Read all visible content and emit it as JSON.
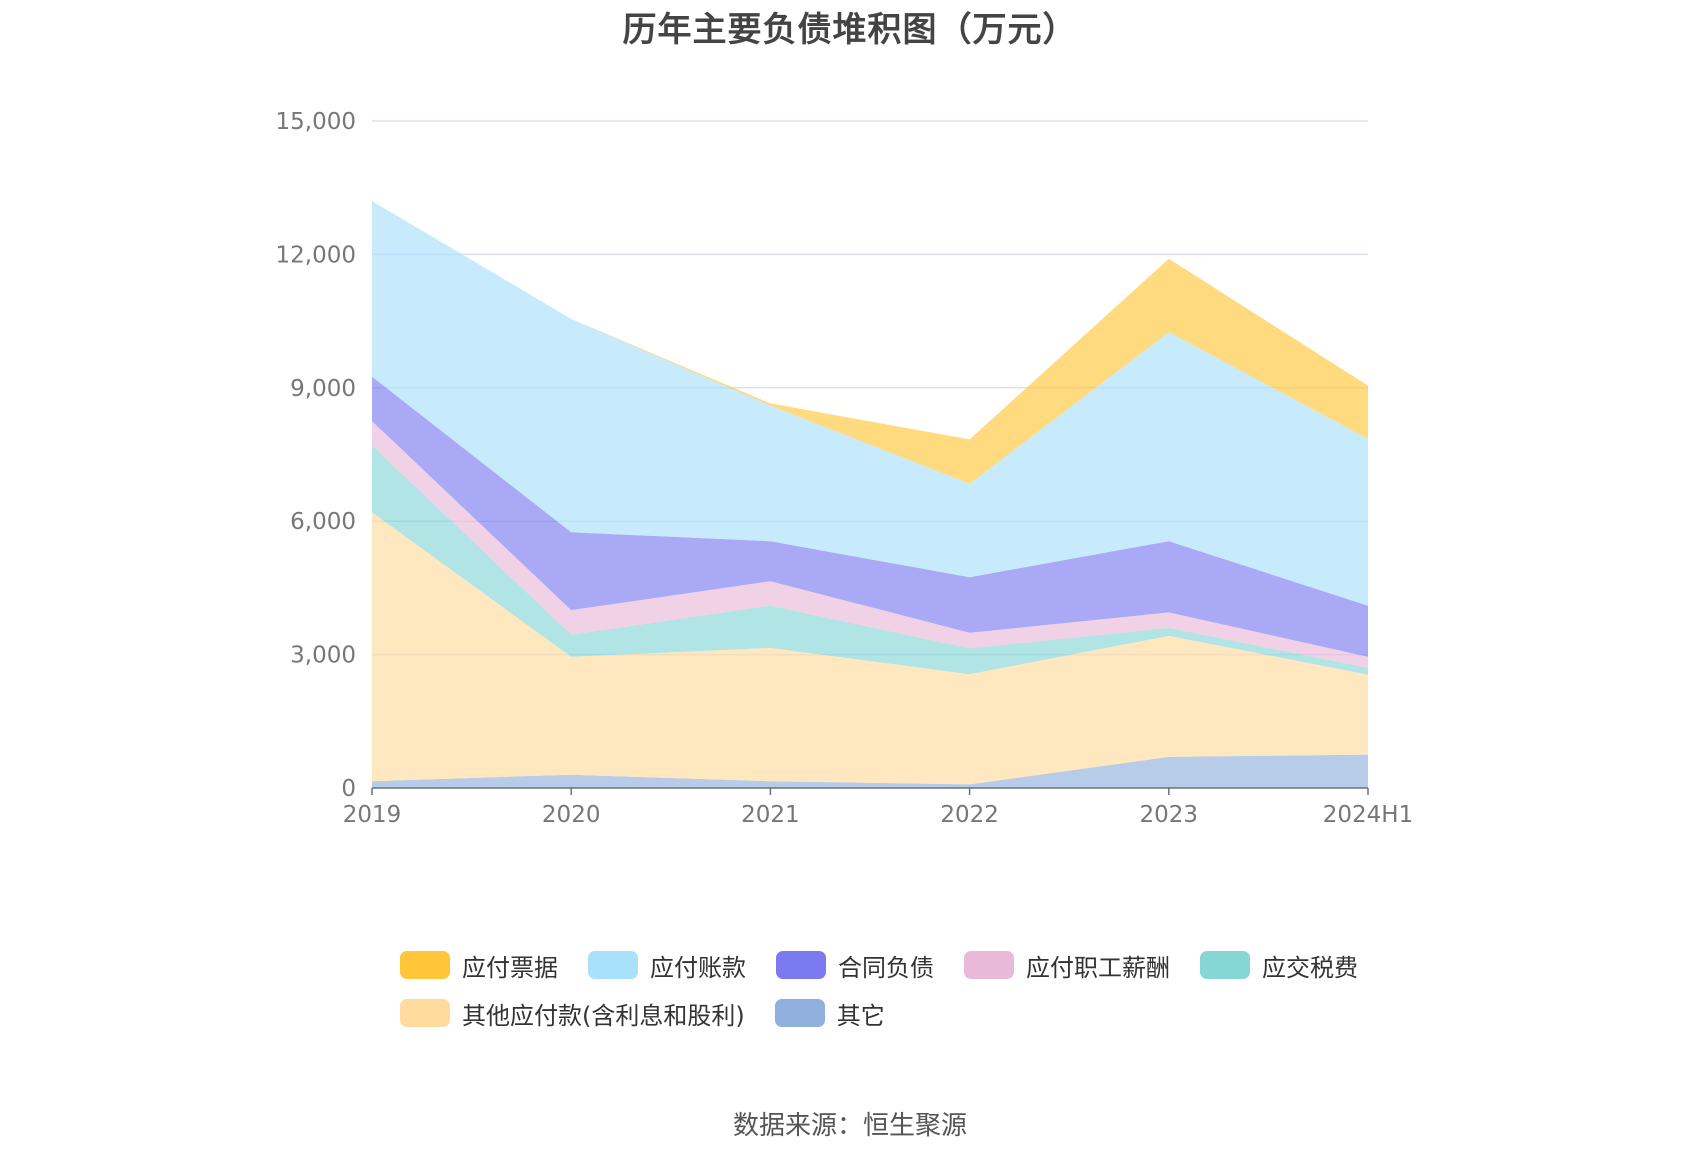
{
  "title": "历年主要负债堆积图（万元）",
  "source": "数据来源：恒生聚源",
  "chart_data": {
    "type": "area",
    "stacked": true,
    "x": [
      "2019",
      "2020",
      "2021",
      "2022",
      "2023",
      "2024H1"
    ],
    "ylim": [
      0,
      15000
    ],
    "yticks": [
      0,
      3000,
      6000,
      9000,
      12000,
      15000
    ],
    "ytick_labels": [
      "0",
      "3,000",
      "6,000",
      "9,000",
      "12,000",
      "15,000"
    ],
    "grid": true,
    "legend_position": "bottom",
    "series": [
      {
        "name": "其它",
        "values": [
          150,
          300,
          150,
          80,
          700,
          750
        ],
        "color": "#8FB0DC"
      },
      {
        "name": "其他应付款(含利息和股利)",
        "values": [
          6050,
          2650,
          3000,
          2480,
          2720,
          1800
        ],
        "color": "#FFDC9E"
      },
      {
        "name": "应交税费",
        "values": [
          1500,
          500,
          950,
          580,
          180,
          150
        ],
        "color": "#87D6D6"
      },
      {
        "name": "应付职工薪酬",
        "values": [
          550,
          550,
          550,
          350,
          350,
          250
        ],
        "color": "#E9B9D9"
      },
      {
        "name": "合同负债",
        "values": [
          1000,
          1750,
          900,
          1250,
          1600,
          1150
        ],
        "color": "#7B7BEF"
      },
      {
        "name": "应付账款",
        "values": [
          3950,
          4800,
          3050,
          2100,
          4700,
          3750
        ],
        "color": "#A9E0FA"
      },
      {
        "name": "应付票据",
        "values": [
          0,
          0,
          50,
          1000,
          1650,
          1200
        ],
        "color": "#FFC63A"
      }
    ]
  },
  "legend_order": [
    6,
    5,
    4,
    3,
    2,
    1,
    0
  ]
}
